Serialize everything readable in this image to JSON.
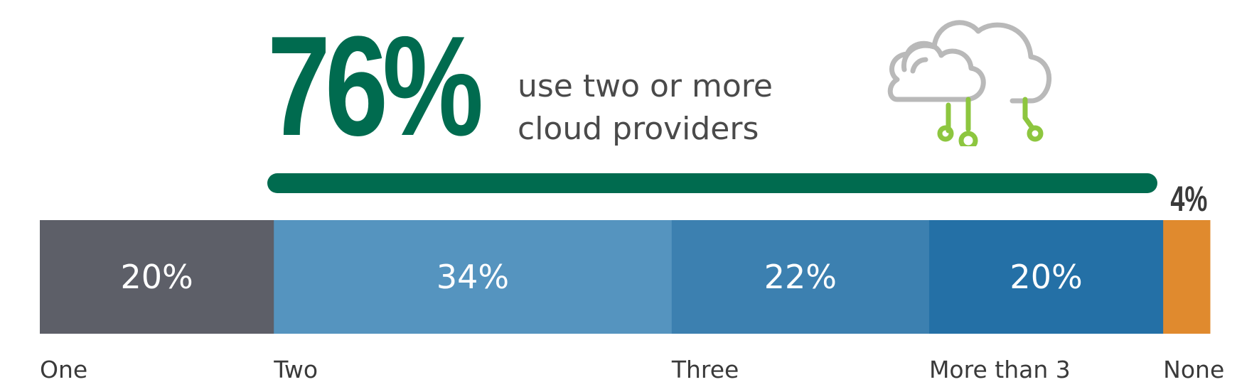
{
  "headline": {
    "big_number": "76%",
    "sub_line1": "use two or more",
    "sub_line2": "cloud providers"
  },
  "colors": {
    "green": "#006b4f",
    "sub_text": "#4a4a4a",
    "cloud_gray": "#b9b9b9",
    "circuit_green": "#8dc63f",
    "none_label": "#3a3a3a"
  },
  "chart_data": {
    "type": "bar",
    "orientation": "horizontal-stacked-100",
    "categories": [
      "One",
      "Two",
      "Three",
      "More than 3",
      "None"
    ],
    "values": [
      20,
      34,
      22,
      20,
      4
    ],
    "labels": [
      "20%",
      "34%",
      "22%",
      "20%",
      "4%"
    ],
    "colors": [
      "#5d5f68",
      "#5594bf",
      "#3c80b0",
      "#2470a6",
      "#e08a2e"
    ],
    "bracket": {
      "label": "76%",
      "covers": [
        "Two",
        "Three",
        "More than 3"
      ]
    }
  }
}
